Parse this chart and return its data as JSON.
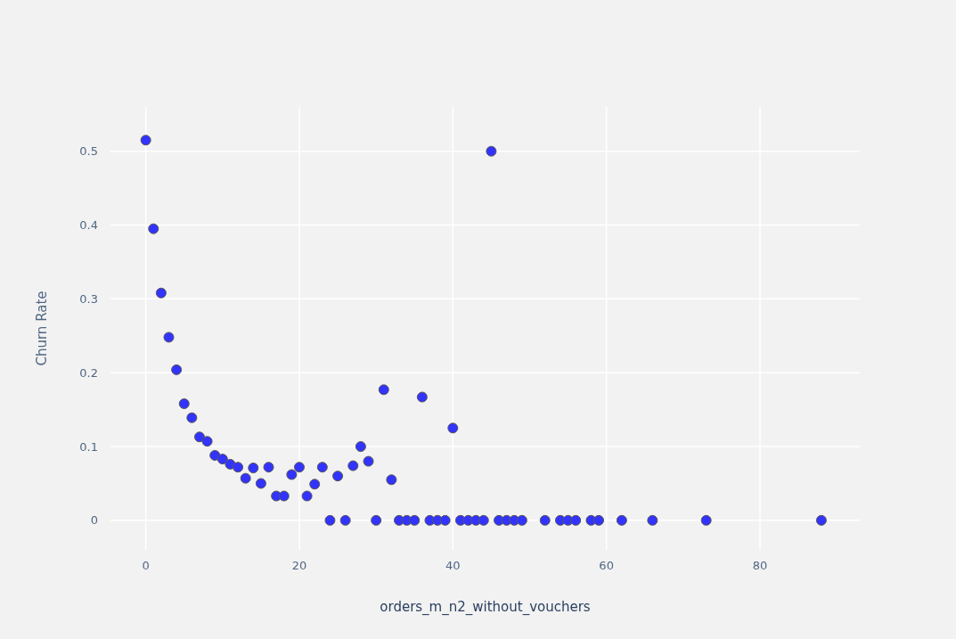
{
  "chart_data": {
    "type": "scatter",
    "xlabel": "orders_m_n2_without_vouchers",
    "ylabel": "Churn Rate",
    "x": [
      0,
      1,
      2,
      3,
      4,
      5,
      6,
      7,
      8,
      9,
      10,
      11,
      12,
      13,
      14,
      15,
      16,
      17,
      18,
      19,
      20,
      21,
      22,
      23,
      24,
      25,
      26,
      27,
      28,
      29,
      30,
      31,
      32,
      33,
      34,
      35,
      36,
      37,
      38,
      39,
      40,
      41,
      42,
      43,
      44,
      45,
      46,
      47,
      48,
      49,
      52,
      54,
      55,
      56,
      58,
      59,
      62,
      66,
      73,
      88
    ],
    "series": [
      {
        "color": "#3333ff",
        "values": [
          0.515,
          0.395,
          0.308,
          0.248,
          0.204,
          0.158,
          0.139,
          0.113,
          0.107,
          0.088,
          0.083,
          0.076,
          0.072,
          0.057,
          0.071,
          0.05,
          0.072,
          0.033,
          0.033,
          0.062,
          0.072,
          0.033,
          0.049,
          0.072,
          0,
          0.06,
          0,
          0.074,
          0.1,
          0.08,
          0,
          0.177,
          0.055,
          0,
          0,
          0,
          0.167,
          0,
          0,
          0,
          0.125,
          0,
          0,
          0,
          0,
          0.5,
          0,
          0,
          0,
          0,
          0,
          0,
          0,
          0,
          0,
          0,
          0,
          0,
          0,
          0
        ]
      }
    ],
    "xlim": [
      -4.6,
      93
    ],
    "ylim": [
      -0.04,
      0.56
    ],
    "xticks": [
      0,
      20,
      40,
      60,
      80
    ],
    "yticks": [
      0,
      0.1,
      0.2,
      0.3,
      0.4,
      0.5
    ],
    "grid": true,
    "marker": "circle"
  }
}
